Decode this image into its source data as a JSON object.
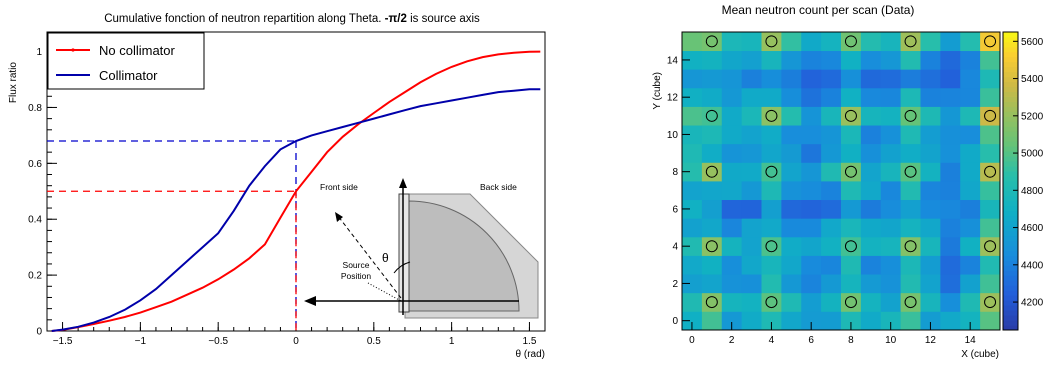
{
  "chart_data": [
    {
      "type": "line",
      "title": "Cumulative fonction of neutron repartition along Theta.",
      "title_suffix_math": "-π/2",
      "title_suffix_text": "is source axis",
      "xlabel": "θ (rad)",
      "ylabel": "Flux ratio",
      "xlim": [
        -1.6,
        1.6
      ],
      "ylim": [
        0,
        1.07
      ],
      "xticks": [
        "−1.5",
        "−1",
        "−0.5",
        "0",
        "0.5",
        "1",
        "1.5"
      ],
      "xtick_values": [
        -1.5,
        -1,
        -0.5,
        0,
        0.5,
        1,
        1.5
      ],
      "yticks": [
        "0",
        "0.2",
        "0.4",
        "0.6",
        "0.8",
        "1"
      ],
      "ytick_values": [
        0,
        0.2,
        0.4,
        0.6,
        0.8,
        1
      ],
      "grid": false,
      "legend_position": "top-left",
      "series": [
        {
          "name": "No collimator",
          "color": "#ff0000",
          "x": [
            -1.57,
            -1.5,
            -1.4,
            -1.3,
            -1.2,
            -1.1,
            -1.0,
            -0.9,
            -0.8,
            -0.7,
            -0.6,
            -0.5,
            -0.4,
            -0.3,
            -0.2,
            -0.1,
            0.0,
            0.1,
            0.2,
            0.3,
            0.4,
            0.5,
            0.6,
            0.7,
            0.8,
            0.9,
            1.0,
            1.1,
            1.2,
            1.3,
            1.4,
            1.5,
            1.57
          ],
          "y": [
            0.0,
            0.004,
            0.014,
            0.025,
            0.037,
            0.05,
            0.066,
            0.085,
            0.105,
            0.13,
            0.155,
            0.185,
            0.22,
            0.26,
            0.31,
            0.405,
            0.5,
            0.57,
            0.64,
            0.695,
            0.74,
            0.78,
            0.82,
            0.855,
            0.89,
            0.92,
            0.945,
            0.965,
            0.98,
            0.99,
            0.996,
            0.999,
            1.0
          ]
        },
        {
          "name": "Collimator",
          "color": "#0000aa",
          "x": [
            -1.57,
            -1.5,
            -1.4,
            -1.3,
            -1.2,
            -1.1,
            -1.0,
            -0.9,
            -0.8,
            -0.7,
            -0.6,
            -0.5,
            -0.4,
            -0.3,
            -0.2,
            -0.1,
            0.0,
            0.1,
            0.2,
            0.3,
            0.4,
            0.5,
            0.6,
            0.7,
            0.8,
            0.9,
            1.0,
            1.1,
            1.2,
            1.3,
            1.4,
            1.5,
            1.57
          ],
          "y": [
            0.0,
            0.005,
            0.015,
            0.03,
            0.05,
            0.076,
            0.11,
            0.15,
            0.2,
            0.25,
            0.3,
            0.35,
            0.43,
            0.52,
            0.59,
            0.65,
            0.68,
            0.7,
            0.715,
            0.73,
            0.745,
            0.76,
            0.775,
            0.79,
            0.805,
            0.815,
            0.825,
            0.835,
            0.845,
            0.855,
            0.86,
            0.865,
            0.865
          ]
        }
      ],
      "reference_lines": [
        {
          "color": "#0000cc",
          "y": 0.68,
          "x": 0.0
        },
        {
          "color": "#ff0000",
          "y": 0.5,
          "x": 0.0
        }
      ],
      "inset_labels": {
        "front": "Front side",
        "back": "Back side",
        "theta": "θ",
        "source": "Source\nPosition"
      }
    },
    {
      "type": "heatmap",
      "title": "Mean neutron count per scan (Data)",
      "xlabel": "X (cube)",
      "ylabel": "Y (cube)",
      "xlim": [
        -0.5,
        15.5
      ],
      "ylim": [
        -0.5,
        15.5
      ],
      "xticks": [
        "0",
        "2",
        "4",
        "6",
        "8",
        "10",
        "12",
        "14"
      ],
      "xtick_values": [
        0,
        2,
        4,
        6,
        8,
        10,
        12,
        14
      ],
      "yticks": [
        "0",
        "2",
        "4",
        "6",
        "8",
        "10",
        "12",
        "14"
      ],
      "ytick_values": [
        0,
        2,
        4,
        6,
        8,
        10,
        12,
        14
      ],
      "colorbar_ticks": [
        "4200",
        "4400",
        "4600",
        "4800",
        "5000",
        "5200",
        "5400",
        "5600"
      ],
      "colorbar_values": [
        4200,
        4400,
        4600,
        4800,
        5000,
        5200,
        5400,
        5600
      ],
      "zlim": [
        4050,
        5650
      ],
      "source_markers_x": [
        1,
        4,
        8,
        11,
        15
      ],
      "source_markers_y": [
        1,
        4,
        8,
        11,
        15
      ],
      "grid": false
    }
  ]
}
